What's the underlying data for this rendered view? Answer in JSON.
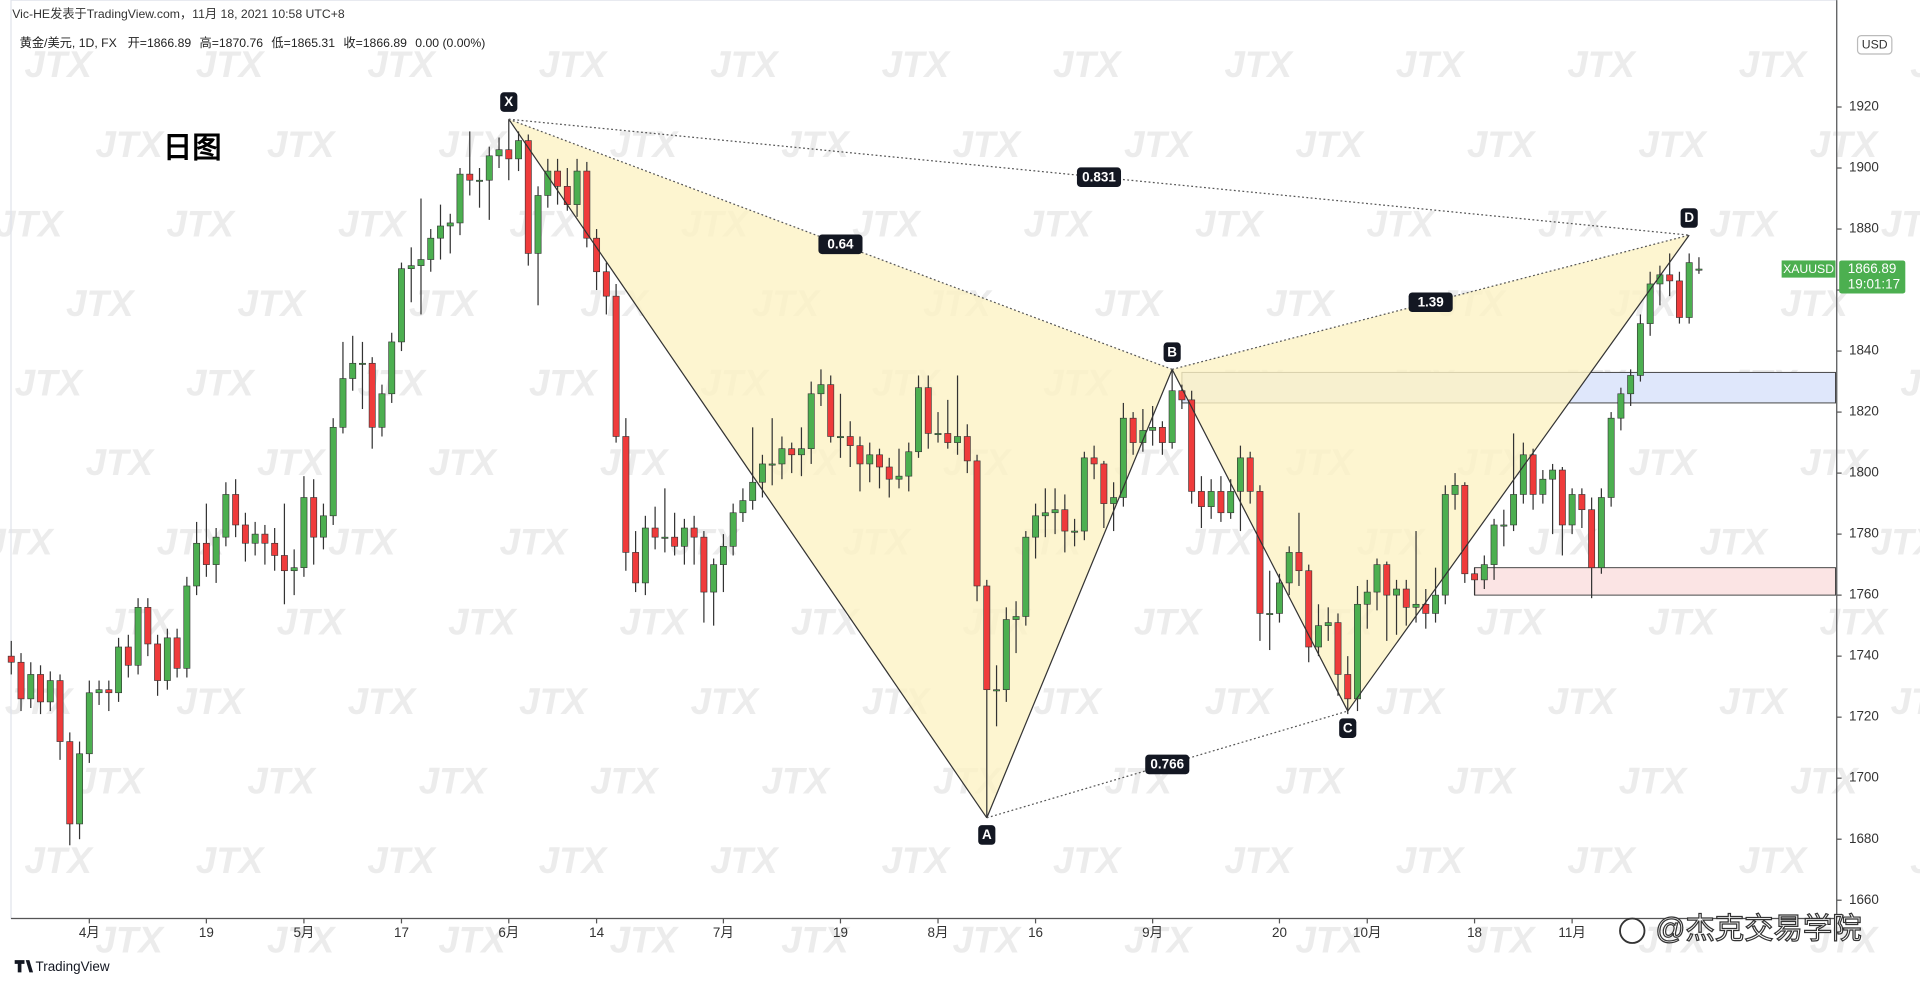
{
  "chart_data": {
    "type": "candlestick",
    "attribution": "Vic-HE发表于TradingView.com，11月 18, 2021 10:58 UTC+8",
    "symbol": "黄金/美元, 1D, FX",
    "ohlc_labels": [
      "开=",
      "高=",
      "低=",
      "收="
    ],
    "change": "0.00 (0.00%)",
    "title": "日图",
    "ticker": "XAUUSD",
    "countdown": "19:01:17",
    "currency": "USD",
    "watermark": "JTX",
    "brand": "TradingView",
    "credit": "@杰克交易学院",
    "up_color": "#4caf50",
    "down_color": "#ef3b3b",
    "grid": false,
    "ylim": [
      1654,
      1947
    ],
    "yticks": [
      1660,
      1680,
      1700,
      1720,
      1740,
      1760,
      1780,
      1800,
      1820,
      1840,
      1860,
      1880,
      1900,
      1920
    ],
    "xlim": [
      0,
      187
    ],
    "xticks": [
      {
        "value": 8,
        "label": "4月"
      },
      {
        "value": 20,
        "label": "19"
      },
      {
        "value": 30,
        "label": "5月"
      },
      {
        "value": 40,
        "label": "17"
      },
      {
        "value": 51,
        "label": "6月"
      },
      {
        "value": 60,
        "label": "14"
      },
      {
        "value": 73,
        "label": "7月"
      },
      {
        "value": 85,
        "label": "19"
      },
      {
        "value": 95,
        "label": "8月"
      },
      {
        "value": 105,
        "label": "16"
      },
      {
        "value": 117,
        "label": "9月"
      },
      {
        "value": 130,
        "label": "20"
      },
      {
        "value": 139,
        "label": "10月"
      },
      {
        "value": 150,
        "label": "18"
      },
      {
        "value": 160,
        "label": "11月"
      }
    ],
    "candles": [
      [
        1740,
        1745,
        1734,
        1738
      ],
      [
        1738,
        1741,
        1722,
        1726
      ],
      [
        1726,
        1738,
        1723,
        1734
      ],
      [
        1734,
        1737,
        1721,
        1725
      ],
      [
        1725,
        1735,
        1722,
        1732
      ],
      [
        1732,
        1734,
        1706,
        1712
      ],
      [
        1712,
        1715,
        1678,
        1685
      ],
      [
        1685,
        1712,
        1680,
        1708
      ],
      [
        1708,
        1732,
        1705,
        1728
      ],
      [
        1728,
        1732,
        1724,
        1729
      ],
      [
        1729,
        1732,
        1722,
        1728
      ],
      [
        1728,
        1746,
        1725,
        1743
      ],
      [
        1743,
        1747,
        1733,
        1737
      ],
      [
        1737,
        1759,
        1734,
        1756
      ],
      [
        1756,
        1759,
        1740,
        1744
      ],
      [
        1744,
        1747,
        1727,
        1732
      ],
      [
        1732,
        1749,
        1729,
        1746
      ],
      [
        1746,
        1749,
        1733,
        1736
      ],
      [
        1736,
        1766,
        1733,
        1763
      ],
      [
        1763,
        1784,
        1760,
        1777
      ],
      [
        1777,
        1790,
        1766,
        1770
      ],
      [
        1770,
        1782,
        1764,
        1779
      ],
      [
        1779,
        1797,
        1776,
        1793
      ],
      [
        1793,
        1798,
        1779,
        1783
      ],
      [
        1783,
        1787,
        1771,
        1777
      ],
      [
        1777,
        1784,
        1773,
        1780
      ],
      [
        1780,
        1783,
        1770,
        1777
      ],
      [
        1777,
        1782,
        1768,
        1773
      ],
      [
        1773,
        1790,
        1757,
        1768
      ],
      [
        1768,
        1775,
        1760,
        1769
      ],
      [
        1769,
        1799,
        1766,
        1792
      ],
      [
        1792,
        1798,
        1770,
        1779
      ],
      [
        1779,
        1790,
        1775,
        1786
      ],
      [
        1786,
        1818,
        1783,
        1815
      ],
      [
        1815,
        1843,
        1813,
        1831
      ],
      [
        1831,
        1845,
        1827,
        1836
      ],
      [
        1836,
        1843,
        1821,
        1836
      ],
      [
        1836,
        1838,
        1808,
        1815
      ],
      [
        1815,
        1829,
        1812,
        1826
      ],
      [
        1826,
        1846,
        1823,
        1843
      ],
      [
        1843,
        1869,
        1840,
        1867
      ],
      [
        1867,
        1874,
        1856,
        1868
      ],
      [
        1868,
        1890,
        1852,
        1870
      ],
      [
        1870,
        1880,
        1866,
        1877
      ],
      [
        1877,
        1888,
        1870,
        1881
      ],
      [
        1881,
        1885,
        1872,
        1882
      ],
      [
        1882,
        1900,
        1878,
        1898
      ],
      [
        1898,
        1912,
        1891,
        1896
      ],
      [
        1896,
        1900,
        1887,
        1896
      ],
      [
        1896,
        1907,
        1883,
        1904
      ],
      [
        1904,
        1910,
        1900,
        1906
      ],
      [
        1906,
        1916,
        1896,
        1903
      ],
      [
        1903,
        1912,
        1899,
        1909
      ],
      [
        1909,
        1911,
        1868,
        1872
      ],
      [
        1872,
        1894,
        1855,
        1891
      ],
      [
        1891,
        1903,
        1887,
        1899
      ],
      [
        1899,
        1903,
        1888,
        1894
      ],
      [
        1894,
        1900,
        1886,
        1888
      ],
      [
        1888,
        1903,
        1884,
        1899
      ],
      [
        1899,
        1902,
        1874,
        1877
      ],
      [
        1877,
        1880,
        1860,
        1866
      ],
      [
        1866,
        1869,
        1852,
        1858
      ],
      [
        1858,
        1862,
        1810,
        1812
      ],
      [
        1812,
        1818,
        1768,
        1774
      ],
      [
        1774,
        1781,
        1761,
        1764
      ],
      [
        1764,
        1786,
        1760,
        1782
      ],
      [
        1782,
        1789,
        1775,
        1779
      ],
      [
        1779,
        1795,
        1774,
        1779
      ],
      [
        1779,
        1787,
        1773,
        1776
      ],
      [
        1776,
        1785,
        1770,
        1782
      ],
      [
        1782,
        1786,
        1770,
        1779
      ],
      [
        1779,
        1781,
        1751,
        1761
      ],
      [
        1761,
        1772,
        1750,
        1770
      ],
      [
        1770,
        1780,
        1761,
        1776
      ],
      [
        1776,
        1790,
        1773,
        1787
      ],
      [
        1787,
        1795,
        1784,
        1791
      ],
      [
        1791,
        1815,
        1788,
        1797
      ],
      [
        1797,
        1806,
        1792,
        1803
      ],
      [
        1803,
        1818,
        1796,
        1803
      ],
      [
        1803,
        1812,
        1798,
        1808
      ],
      [
        1808,
        1810,
        1800,
        1806
      ],
      [
        1806,
        1815,
        1799,
        1808
      ],
      [
        1808,
        1830,
        1803,
        1826
      ],
      [
        1826,
        1834,
        1822,
        1829
      ],
      [
        1829,
        1832,
        1810,
        1812
      ],
      [
        1812,
        1826,
        1805,
        1812
      ],
      [
        1812,
        1817,
        1802,
        1809
      ],
      [
        1809,
        1812,
        1794,
        1803
      ],
      [
        1803,
        1810,
        1797,
        1806
      ],
      [
        1806,
        1808,
        1795,
        1802
      ],
      [
        1802,
        1805,
        1792,
        1798
      ],
      [
        1798,
        1808,
        1795,
        1799
      ],
      [
        1799,
        1810,
        1794,
        1807
      ],
      [
        1807,
        1832,
        1805,
        1828
      ],
      [
        1828,
        1832,
        1808,
        1813
      ],
      [
        1813,
        1820,
        1810,
        1813
      ],
      [
        1813,
        1824,
        1808,
        1810
      ],
      [
        1810,
        1832,
        1806,
        1812
      ],
      [
        1812,
        1816,
        1800,
        1804
      ],
      [
        1804,
        1806,
        1758,
        1763
      ],
      [
        1763,
        1765,
        1687,
        1729
      ],
      [
        1729,
        1737,
        1717,
        1729
      ],
      [
        1729,
        1756,
        1725,
        1752
      ],
      [
        1752,
        1758,
        1741,
        1753
      ],
      [
        1753,
        1781,
        1750,
        1779
      ],
      [
        1779,
        1790,
        1772,
        1786
      ],
      [
        1786,
        1795,
        1779,
        1787
      ],
      [
        1787,
        1795,
        1780,
        1788
      ],
      [
        1788,
        1793,
        1774,
        1781
      ],
      [
        1781,
        1785,
        1776,
        1781
      ],
      [
        1781,
        1807,
        1778,
        1805
      ],
      [
        1805,
        1809,
        1798,
        1803
      ],
      [
        1803,
        1804,
        1782,
        1790
      ],
      [
        1790,
        1797,
        1781,
        1792
      ],
      [
        1792,
        1823,
        1789,
        1818
      ],
      [
        1818,
        1820,
        1806,
        1810
      ],
      [
        1810,
        1821,
        1807,
        1814
      ],
      [
        1814,
        1822,
        1809,
        1815
      ],
      [
        1815,
        1817,
        1806,
        1810
      ],
      [
        1810,
        1834,
        1808,
        1827
      ],
      [
        1827,
        1829,
        1821,
        1824
      ],
      [
        1824,
        1827,
        1790,
        1794
      ],
      [
        1794,
        1799,
        1782,
        1789
      ],
      [
        1789,
        1798,
        1785,
        1794
      ],
      [
        1794,
        1799,
        1784,
        1787
      ],
      [
        1787,
        1798,
        1785,
        1794
      ],
      [
        1794,
        1809,
        1781,
        1805
      ],
      [
        1805,
        1807,
        1790,
        1794
      ],
      [
        1794,
        1796,
        1745,
        1754
      ],
      [
        1754,
        1768,
        1742,
        1754
      ],
      [
        1754,
        1767,
        1751,
        1764
      ],
      [
        1764,
        1776,
        1760,
        1774
      ],
      [
        1774,
        1787,
        1763,
        1768
      ],
      [
        1768,
        1770,
        1738,
        1743
      ],
      [
        1743,
        1757,
        1740,
        1750
      ],
      [
        1750,
        1756,
        1745,
        1751
      ],
      [
        1751,
        1754,
        1727,
        1734
      ],
      [
        1734,
        1740,
        1721,
        1726
      ],
      [
        1726,
        1763,
        1722,
        1757
      ],
      [
        1757,
        1765,
        1749,
        1761
      ],
      [
        1761,
        1772,
        1755,
        1770
      ],
      [
        1770,
        1771,
        1745,
        1760
      ],
      [
        1760,
        1765,
        1747,
        1762
      ],
      [
        1762,
        1765,
        1750,
        1756
      ],
      [
        1756,
        1781,
        1751,
        1757
      ],
      [
        1757,
        1762,
        1749,
        1754
      ],
      [
        1754,
        1769,
        1751,
        1760
      ],
      [
        1760,
        1796,
        1757,
        1793
      ],
      [
        1793,
        1800,
        1788,
        1796
      ],
      [
        1796,
        1797,
        1764,
        1767
      ],
      [
        1767,
        1769,
        1760,
        1765
      ],
      [
        1765,
        1773,
        1762,
        1770
      ],
      [
        1770,
        1785,
        1765,
        1783
      ],
      [
        1783,
        1788,
        1776,
        1783
      ],
      [
        1783,
        1813,
        1781,
        1793
      ],
      [
        1793,
        1810,
        1790,
        1806
      ],
      [
        1806,
        1808,
        1788,
        1793
      ],
      [
        1793,
        1801,
        1790,
        1798
      ],
      [
        1798,
        1803,
        1780,
        1801
      ],
      [
        1801,
        1802,
        1773,
        1783
      ],
      [
        1783,
        1795,
        1780,
        1793
      ],
      [
        1793,
        1795,
        1782,
        1788
      ],
      [
        1788,
        1792,
        1759,
        1769
      ],
      [
        1769,
        1795,
        1767,
        1792
      ],
      [
        1792,
        1820,
        1789,
        1818
      ],
      [
        1818,
        1828,
        1814,
        1826
      ],
      [
        1826,
        1834,
        1822,
        1832
      ],
      [
        1832,
        1852,
        1830,
        1849
      ],
      [
        1849,
        1866,
        1845,
        1862
      ],
      [
        1862,
        1868,
        1855,
        1865
      ],
      [
        1865,
        1872,
        1858,
        1863
      ],
      [
        1863,
        1866,
        1849,
        1851
      ],
      [
        1851,
        1872,
        1849,
        1869
      ],
      [
        1866.89,
        1870.76,
        1865.31,
        1866.89
      ]
    ],
    "zones": [
      {
        "color": "#dfe7fb",
        "ylim": [
          1823,
          1833
        ],
        "x": 120
      },
      {
        "color": "#fbe4e4",
        "ylim": [
          1760,
          1769
        ],
        "x": 150
      }
    ],
    "pattern": {
      "fill": "#fdf3c4",
      "points": [
        {
          "label": "X",
          "x": 51,
          "y": 1916
        },
        {
          "label": "A",
          "x": 100,
          "y": 1687
        },
        {
          "label": "B",
          "x": 119,
          "y": 1834
        },
        {
          "label": "C",
          "x": 137,
          "y": 1722
        },
        {
          "label": "D",
          "x": 172,
          "y": 1878
        }
      ],
      "ratios": {
        "XB": 0.64,
        "XD": 0.831,
        "BD": 1.39,
        "AC": 0.766
      }
    }
  }
}
